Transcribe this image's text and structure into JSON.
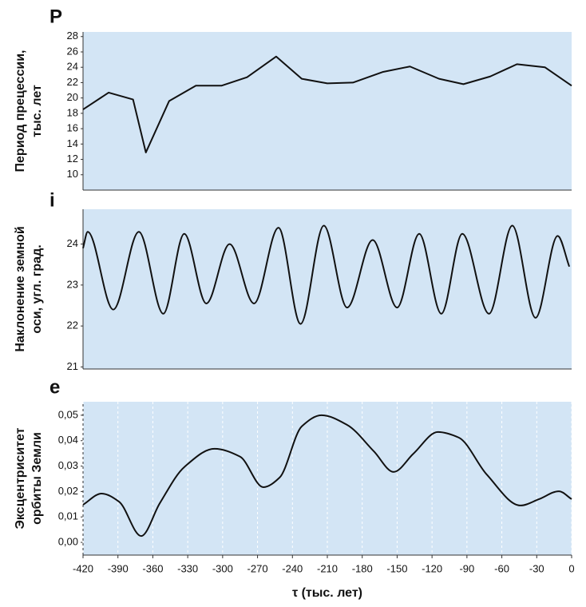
{
  "chart_data": [
    {
      "type": "line",
      "title": "P",
      "ylabel": [
        "Период прецессии,",
        "тыс. лет"
      ],
      "x": [
        -420,
        -398,
        -377,
        -366,
        -346,
        -323,
        -301,
        -279,
        -254,
        -232,
        -210,
        -188,
        -162,
        -139,
        -114,
        -93,
        -70,
        -47,
        -23,
        0
      ],
      "series": [
        {
          "color": "#111111",
          "values": [
            18.5,
            20.7,
            19.8,
            12.9,
            19.6,
            21.6,
            21.6,
            22.7,
            25.4,
            22.5,
            21.9,
            22.0,
            23.4,
            24.1,
            22.5,
            21.8,
            22.8,
            24.4,
            24.0,
            21.6
          ]
        }
      ],
      "xlim": [
        -420,
        0
      ],
      "ylim": [
        8,
        28.6
      ],
      "yticks": [
        10,
        12,
        14,
        16,
        18,
        20,
        22,
        24,
        26,
        28
      ],
      "smooth": false,
      "background": "#d3e5f5"
    },
    {
      "type": "line",
      "title": "i",
      "ylabel": [
        "Наклонение земной",
        "оси, угл. град."
      ],
      "x": [
        -420,
        -416,
        -394,
        -372,
        -351,
        -333,
        -314,
        -294,
        -273,
        -252,
        -233,
        -213,
        -193,
        -171,
        -150,
        -131,
        -112,
        -94,
        -71,
        -51,
        -31,
        -12,
        -2
      ],
      "series": [
        {
          "color": "#111111",
          "values": [
            23.9,
            24.3,
            22.4,
            24.3,
            22.3,
            24.25,
            22.55,
            24.0,
            22.55,
            24.4,
            22.05,
            24.45,
            22.45,
            24.1,
            22.45,
            24.25,
            22.3,
            24.25,
            22.3,
            24.45,
            22.2,
            24.2,
            23.45
          ]
        }
      ],
      "xlim": [
        -420,
        0
      ],
      "ylim": [
        20.95,
        24.85
      ],
      "yticks": [
        21,
        22,
        23,
        24
      ],
      "smooth": true,
      "background": "#d3e5f5"
    },
    {
      "type": "line",
      "title": "e",
      "ylabel": [
        "Эксцентриситет",
        "орбиты Земли"
      ],
      "xlabel": "τ (тыс. лет)",
      "x": [
        -420,
        -404,
        -389,
        -370,
        -354,
        -333,
        -307,
        -285,
        -265,
        -251,
        -232,
        -215,
        -193,
        -170,
        -153,
        -136,
        -115,
        -97,
        -73,
        -44,
        -28,
        -11,
        0
      ],
      "series": [
        {
          "color": "#111111",
          "values": [
            0.0148,
            0.0192,
            0.016,
            0.0025,
            0.0154,
            0.0296,
            0.0368,
            0.0337,
            0.0217,
            0.0255,
            0.0456,
            0.05,
            0.0462,
            0.0358,
            0.0277,
            0.0349,
            0.0434,
            0.0412,
            0.0267,
            0.0145,
            0.017,
            0.0201,
            0.017
          ]
        }
      ],
      "xlim": [
        -420,
        0
      ],
      "ylim": [
        -0.005,
        0.0553
      ],
      "xticks": [
        -420,
        -390,
        -360,
        -330,
        -300,
        -270,
        -240,
        -210,
        -180,
        -150,
        -120,
        -90,
        -60,
        -30,
        0
      ],
      "yticks": [
        {
          "value": 0,
          "label": "0,00"
        },
        {
          "value": 0.01,
          "label": "0,01"
        },
        {
          "value": 0.02,
          "label": "0,02"
        },
        {
          "value": 0.03,
          "label": "0,03"
        },
        {
          "value": 0.04,
          "label": "0,04"
        },
        {
          "value": 0.05,
          "label": "0,05"
        }
      ],
      "smooth": true,
      "background": "#d3e5f5"
    }
  ]
}
